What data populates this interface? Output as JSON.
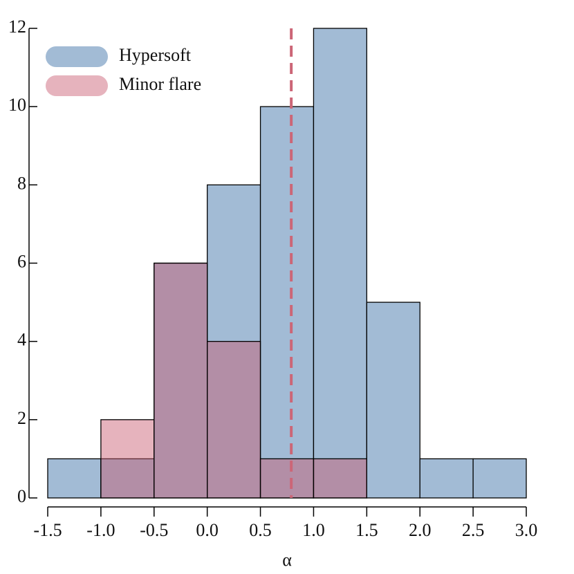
{
  "chart_data": {
    "type": "histogram",
    "xlabel": "α",
    "bins": [
      -1.5,
      -1.0,
      -0.5,
      0.0,
      0.5,
      1.0,
      1.5,
      2.0,
      2.5,
      3.0
    ],
    "series": [
      {
        "name": "Hypersoft",
        "color": "#a2bbd5",
        "alpha": 1,
        "values": [
          1,
          1,
          6,
          8,
          10,
          12,
          5,
          1,
          1
        ]
      },
      {
        "name": "Minor flare",
        "color": "#c85a6f",
        "alpha": 0.46,
        "values": [
          0,
          2,
          6,
          4,
          1,
          1,
          0,
          0,
          0
        ]
      }
    ],
    "vline": {
      "x": 0.79,
      "color": "#cc6677"
    },
    "xlim": [
      -1.5,
      3.0
    ],
    "xticks": [
      -1.5,
      {
        "value": -1.0,
        "label": "-1.0"
      },
      -0.5,
      {
        "value": 0.0,
        "label": "0.0"
      },
      0.5,
      {
        "value": 1.0,
        "label": "1.0"
      },
      1.5,
      {
        "value": 2.0,
        "label": "2.0"
      },
      2.5,
      {
        "value": 3.0,
        "label": "3.0"
      }
    ],
    "ylim": [
      0,
      12
    ],
    "yticks": [
      0,
      2,
      4,
      6,
      8,
      10,
      12
    ],
    "legend": "upper left"
  }
}
